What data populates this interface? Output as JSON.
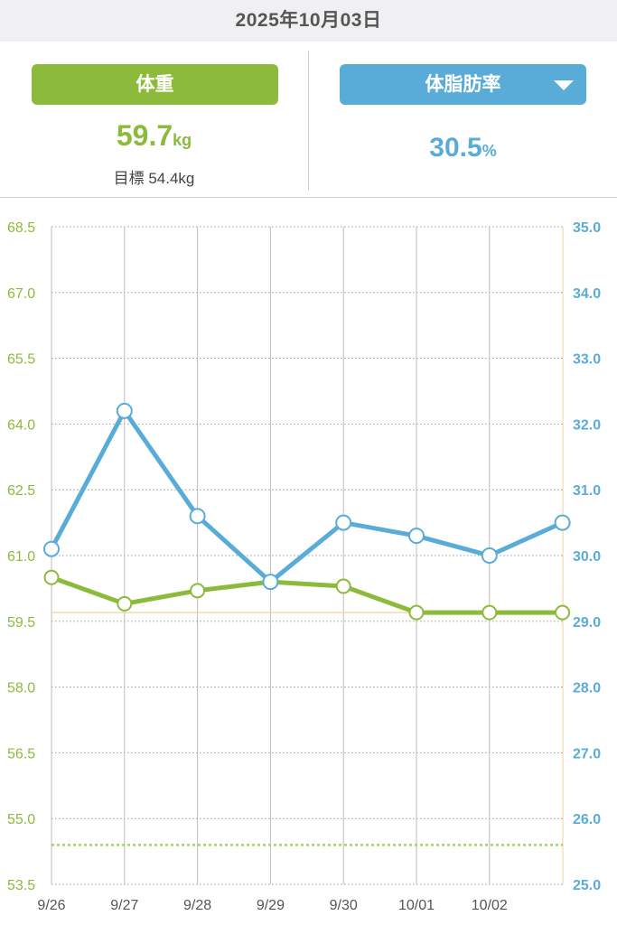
{
  "header": {
    "date": "2025年10月03日"
  },
  "weight_panel": {
    "label": "体重",
    "value": "59.7",
    "unit": "kg",
    "goal_label": "目標",
    "goal_value": "54.4kg"
  },
  "fat_panel": {
    "label": "体脂肪率",
    "value": "30.5",
    "unit": "%",
    "dropdown_icon": "triangle-down-icon"
  },
  "colors": {
    "weight": "#8cbb3c",
    "fat": "#5aacd8",
    "goal_line": "#a8d060",
    "current_line": "#f3cfa0"
  },
  "chart_data": {
    "type": "line",
    "categories": [
      "9/26",
      "9/27",
      "9/28",
      "9/29",
      "9/30",
      "10/01",
      "10/02",
      "10/03"
    ],
    "x_tick_labels": [
      "9/26",
      "9/27",
      "9/28",
      "9/29",
      "9/30",
      "10/01",
      "10/02"
    ],
    "series": [
      {
        "axis": "left",
        "color": "#8cbb3c",
        "values": [
          60.5,
          59.9,
          60.2,
          60.4,
          60.3,
          59.7,
          59.7,
          59.7
        ]
      },
      {
        "axis": "right",
        "color": "#5aacd8",
        "values": [
          30.1,
          32.2,
          30.6,
          29.6,
          30.5,
          30.3,
          30.0,
          30.5
        ]
      }
    ],
    "y_left": {
      "ylim": [
        53.5,
        68.5
      ],
      "ticks": [
        "68.5",
        "67.0",
        "65.5",
        "64.0",
        "62.5",
        "61.0",
        "59.5",
        "58.0",
        "56.5",
        "55.0",
        "53.5"
      ]
    },
    "y_right": {
      "ylim": [
        25.0,
        35.0
      ],
      "ticks": [
        "35.0",
        "34.0",
        "33.0",
        "32.0",
        "31.0",
        "30.0",
        "29.0",
        "28.0",
        "27.0",
        "26.0",
        "25.0"
      ]
    },
    "goal_weight": 54.4,
    "current_weight": 59.7,
    "grid": true
  }
}
